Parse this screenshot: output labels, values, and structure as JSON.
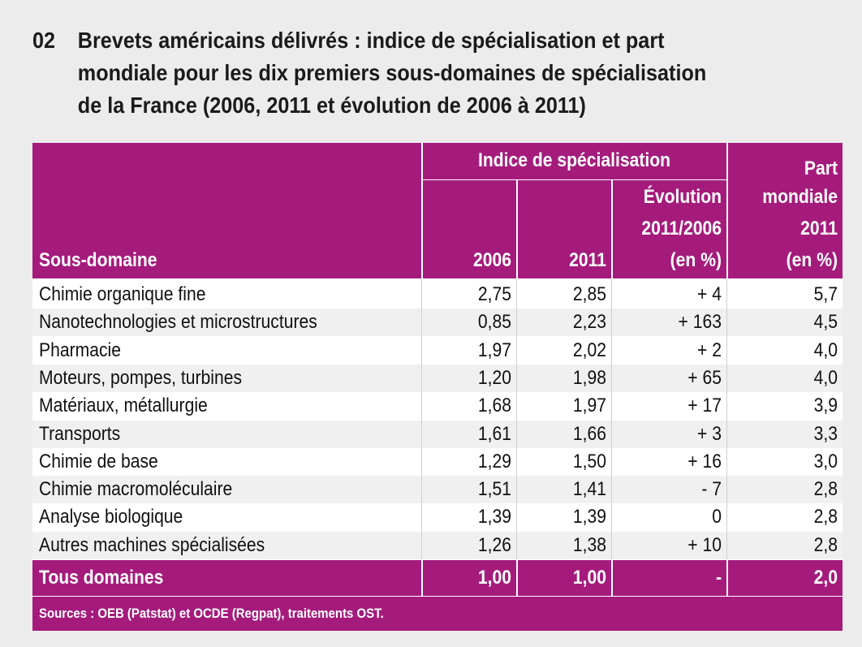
{
  "figure": {
    "number": "02",
    "title_lines": [
      "Brevets américains délivrés : indice de spécialisation et part",
      "mondiale pour les dix premiers sous-domaines de spécialisation",
      "de la France (2006, 2011 et évolution de 2006 à 2011)"
    ]
  },
  "header": {
    "subdomain": "Sous-domaine",
    "group_index": "Indice de spécialisation",
    "col_2006": "2006",
    "col_2011": "2011",
    "evolution_lines": [
      "Évolution",
      "2011/2006",
      "(en %)"
    ],
    "share_lines": [
      "Part",
      "mondiale",
      "2011",
      "(en %)"
    ]
  },
  "rows": [
    {
      "label": "Chimie organique fine",
      "v2006": "2,75",
      "v2011": "2,85",
      "evolution": "+ 4",
      "share": "5,7"
    },
    {
      "label": "Nanotechnologies et microstructures",
      "v2006": "0,85",
      "v2011": "2,23",
      "evolution": "+ 163",
      "share": "4,5"
    },
    {
      "label": "Pharmacie",
      "v2006": "1,97",
      "v2011": "2,02",
      "evolution": "+ 2",
      "share": "4,0"
    },
    {
      "label": "Moteurs, pompes, turbines",
      "v2006": "1,20",
      "v2011": "1,98",
      "evolution": "+ 65",
      "share": "4,0"
    },
    {
      "label": "Matériaux, métallurgie",
      "v2006": "1,68",
      "v2011": "1,97",
      "evolution": "+ 17",
      "share": "3,9"
    },
    {
      "label": "Transports",
      "v2006": "1,61",
      "v2011": "1,66",
      "evolution": "+ 3",
      "share": "3,3"
    },
    {
      "label": "Chimie de base",
      "v2006": "1,29",
      "v2011": "1,50",
      "evolution": "+ 16",
      "share": "3,0"
    },
    {
      "label": "Chimie macromoléculaire",
      "v2006": "1,51",
      "v2011": "1,41",
      "evolution": "- 7",
      "share": "2,8"
    },
    {
      "label": "Analyse biologique",
      "v2006": "1,39",
      "v2011": "1,39",
      "evolution": "0",
      "share": "2,8"
    },
    {
      "label": "Autres machines spécialisées",
      "v2006": "1,26",
      "v2011": "1,38",
      "evolution": "+ 10",
      "share": "2,8"
    }
  ],
  "total": {
    "label": "Tous domaines",
    "v2006": "1,00",
    "v2011": "1,00",
    "evolution": "-",
    "share": "2,0"
  },
  "source": "Sources : OEB (Patstat) et OCDE (Regpat), traitements OST.",
  "colors": {
    "accent": "#a51b7c",
    "background": "#ececec"
  }
}
